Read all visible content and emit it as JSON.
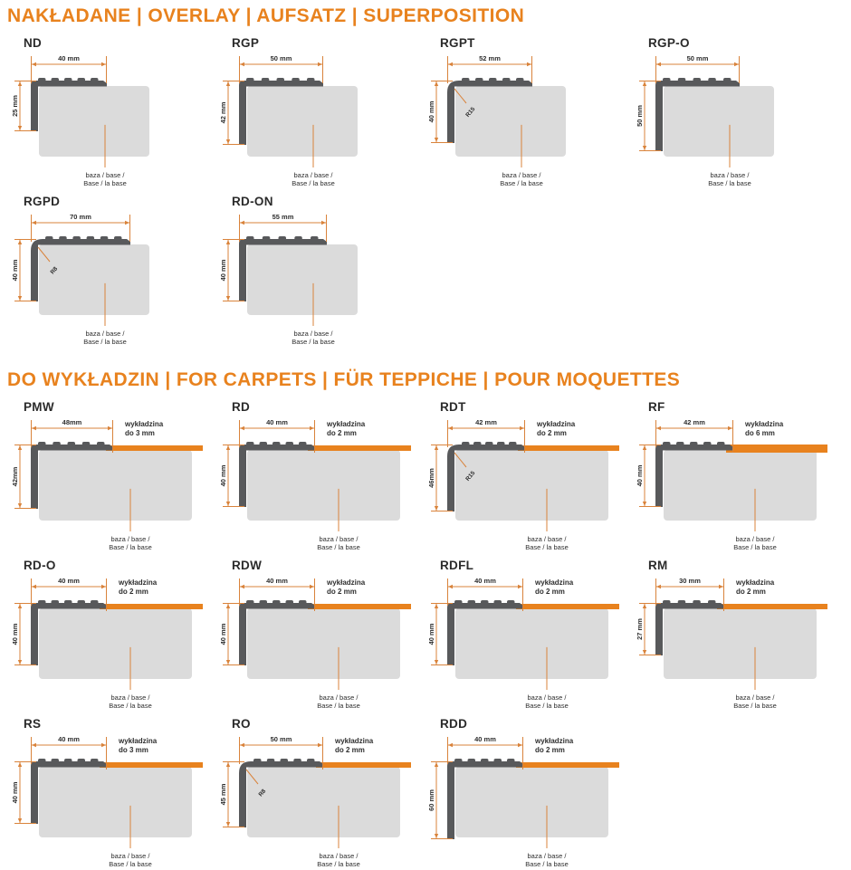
{
  "colors": {
    "accent": "#E8821E",
    "dim_line": "#D9833B",
    "profile": "#58595B",
    "base": "#DBDBDB",
    "text": "#2e2e2e"
  },
  "sections": [
    {
      "title": "NAKŁADANE | OVERLAY | AUFSATZ | SUPERPOSITION",
      "profiles": [
        {
          "name": "ND",
          "width_label": "40 mm",
          "height_label": "25 mm",
          "width_mm": 40,
          "height_mm": 25,
          "base_label_1": "baza / base /",
          "base_label_2": "Base / la base"
        },
        {
          "name": "RGP",
          "width_label": "50 mm",
          "height_label": "42 mm",
          "width_mm": 50,
          "height_mm": 42,
          "base_label_1": "baza / base /",
          "base_label_2": "Base / la base"
        },
        {
          "name": "RGPT",
          "width_label": "52 mm",
          "height_label": "40 mm",
          "width_mm": 52,
          "height_mm": 40,
          "radius_label": "R15",
          "base_label_1": "baza / base /",
          "base_label_2": "Base / la base"
        },
        {
          "name": "RGP-O",
          "width_label": "50 mm",
          "height_label": "50 mm",
          "width_mm": 50,
          "height_mm": 50,
          "base_label_1": "baza / base /",
          "base_label_2": "Base / la base"
        },
        {
          "name": "RGPD",
          "width_label": "70 mm",
          "height_label": "40 mm",
          "width_mm": 70,
          "height_mm": 40,
          "radius_label": "R8",
          "base_label_1": "baza / base /",
          "base_label_2": "Base / la base"
        },
        {
          "name": "RD-ON",
          "width_label": "55 mm",
          "height_label": "40 mm",
          "width_mm": 55,
          "height_mm": 40,
          "base_label_1": "baza / base /",
          "base_label_2": "Base / la base"
        }
      ]
    },
    {
      "title": "DO WYKŁADZIN | FOR CARPETS | FÜR TEPPICHE | POUR MOQUETTES",
      "profiles": [
        {
          "name": "PMW",
          "width_label": "48mm",
          "height_label": "42mm",
          "width_mm": 48,
          "height_mm": 42,
          "carpet_label_1": "wykładzina",
          "carpet_label_2": "do 3 mm",
          "base_label_1": "baza / base /",
          "base_label_2": "Base / la base"
        },
        {
          "name": "RD",
          "width_label": "40 mm",
          "height_label": "40 mm",
          "width_mm": 40,
          "height_mm": 40,
          "carpet_label_1": "wykładzina",
          "carpet_label_2": "do 2 mm",
          "base_label_1": "baza / base /",
          "base_label_2": "Base / la base"
        },
        {
          "name": "RDT",
          "width_label": "42 mm",
          "height_label": "46mm",
          "width_mm": 42,
          "height_mm": 46,
          "radius_label": "R15",
          "carpet_label_1": "wykładzina",
          "carpet_label_2": "do 2 mm",
          "base_label_1": "baza / base /",
          "base_label_2": "Base / la base"
        },
        {
          "name": "RF",
          "width_label": "42 mm",
          "height_label": "40 mm",
          "width_mm": 42,
          "height_mm": 40,
          "carpet_label_1": "wykładzina",
          "carpet_label_2": "do 6 mm",
          "base_label_1": "baza / base /",
          "base_label_2": "Base / la base"
        },
        {
          "name": "RD-O",
          "width_label": "40 mm",
          "height_label": "40 mm",
          "width_mm": 40,
          "height_mm": 40,
          "carpet_label_1": "wykładzina",
          "carpet_label_2": "do 2 mm",
          "base_label_1": "baza / base /",
          "base_label_2": "Base / la base"
        },
        {
          "name": "RDW",
          "width_label": "40 mm",
          "height_label": "40 mm",
          "width_mm": 40,
          "height_mm": 40,
          "carpet_label_1": "wykładzina",
          "carpet_label_2": "do 2 mm",
          "base_label_1": "baza / base /",
          "base_label_2": "Base / la base"
        },
        {
          "name": "RDFL",
          "width_label": "40 mm",
          "height_label": "40 mm",
          "width_mm": 40,
          "height_mm": 40,
          "carpet_label_1": "wykładzina",
          "carpet_label_2": "do 2 mm",
          "base_label_1": "baza / base /",
          "base_label_2": "Base / la base"
        },
        {
          "name": "RM",
          "width_label": "30 mm",
          "height_label": "27 mm",
          "width_mm": 30,
          "height_mm": 27,
          "carpet_label_1": "wykładzina",
          "carpet_label_2": "do 2 mm",
          "base_label_1": "baza / base /",
          "base_label_2": "Base / la base"
        },
        {
          "name": "RS",
          "width_label": "40 mm",
          "height_label": "40 mm",
          "width_mm": 40,
          "height_mm": 40,
          "carpet_label_1": "wykładzina",
          "carpet_label_2": "do 3 mm",
          "base_label_1": "baza / base /",
          "base_label_2": "Base / la base"
        },
        {
          "name": "RO",
          "width_label": "50 mm",
          "height_label": "45 mm",
          "width_mm": 50,
          "height_mm": 45,
          "radius_label": "R8",
          "carpet_label_1": "wykładzina",
          "carpet_label_2": "do 2 mm",
          "base_label_1": "baza / base /",
          "base_label_2": "Base / la base"
        },
        {
          "name": "RDD",
          "width_label": "40 mm",
          "height_label": "60 mm",
          "width_mm": 40,
          "height_mm": 60,
          "carpet_label_1": "wykładzina",
          "carpet_label_2": "do 2 mm",
          "base_label_1": "baza / base /",
          "base_label_2": "Base / la base"
        }
      ]
    }
  ]
}
